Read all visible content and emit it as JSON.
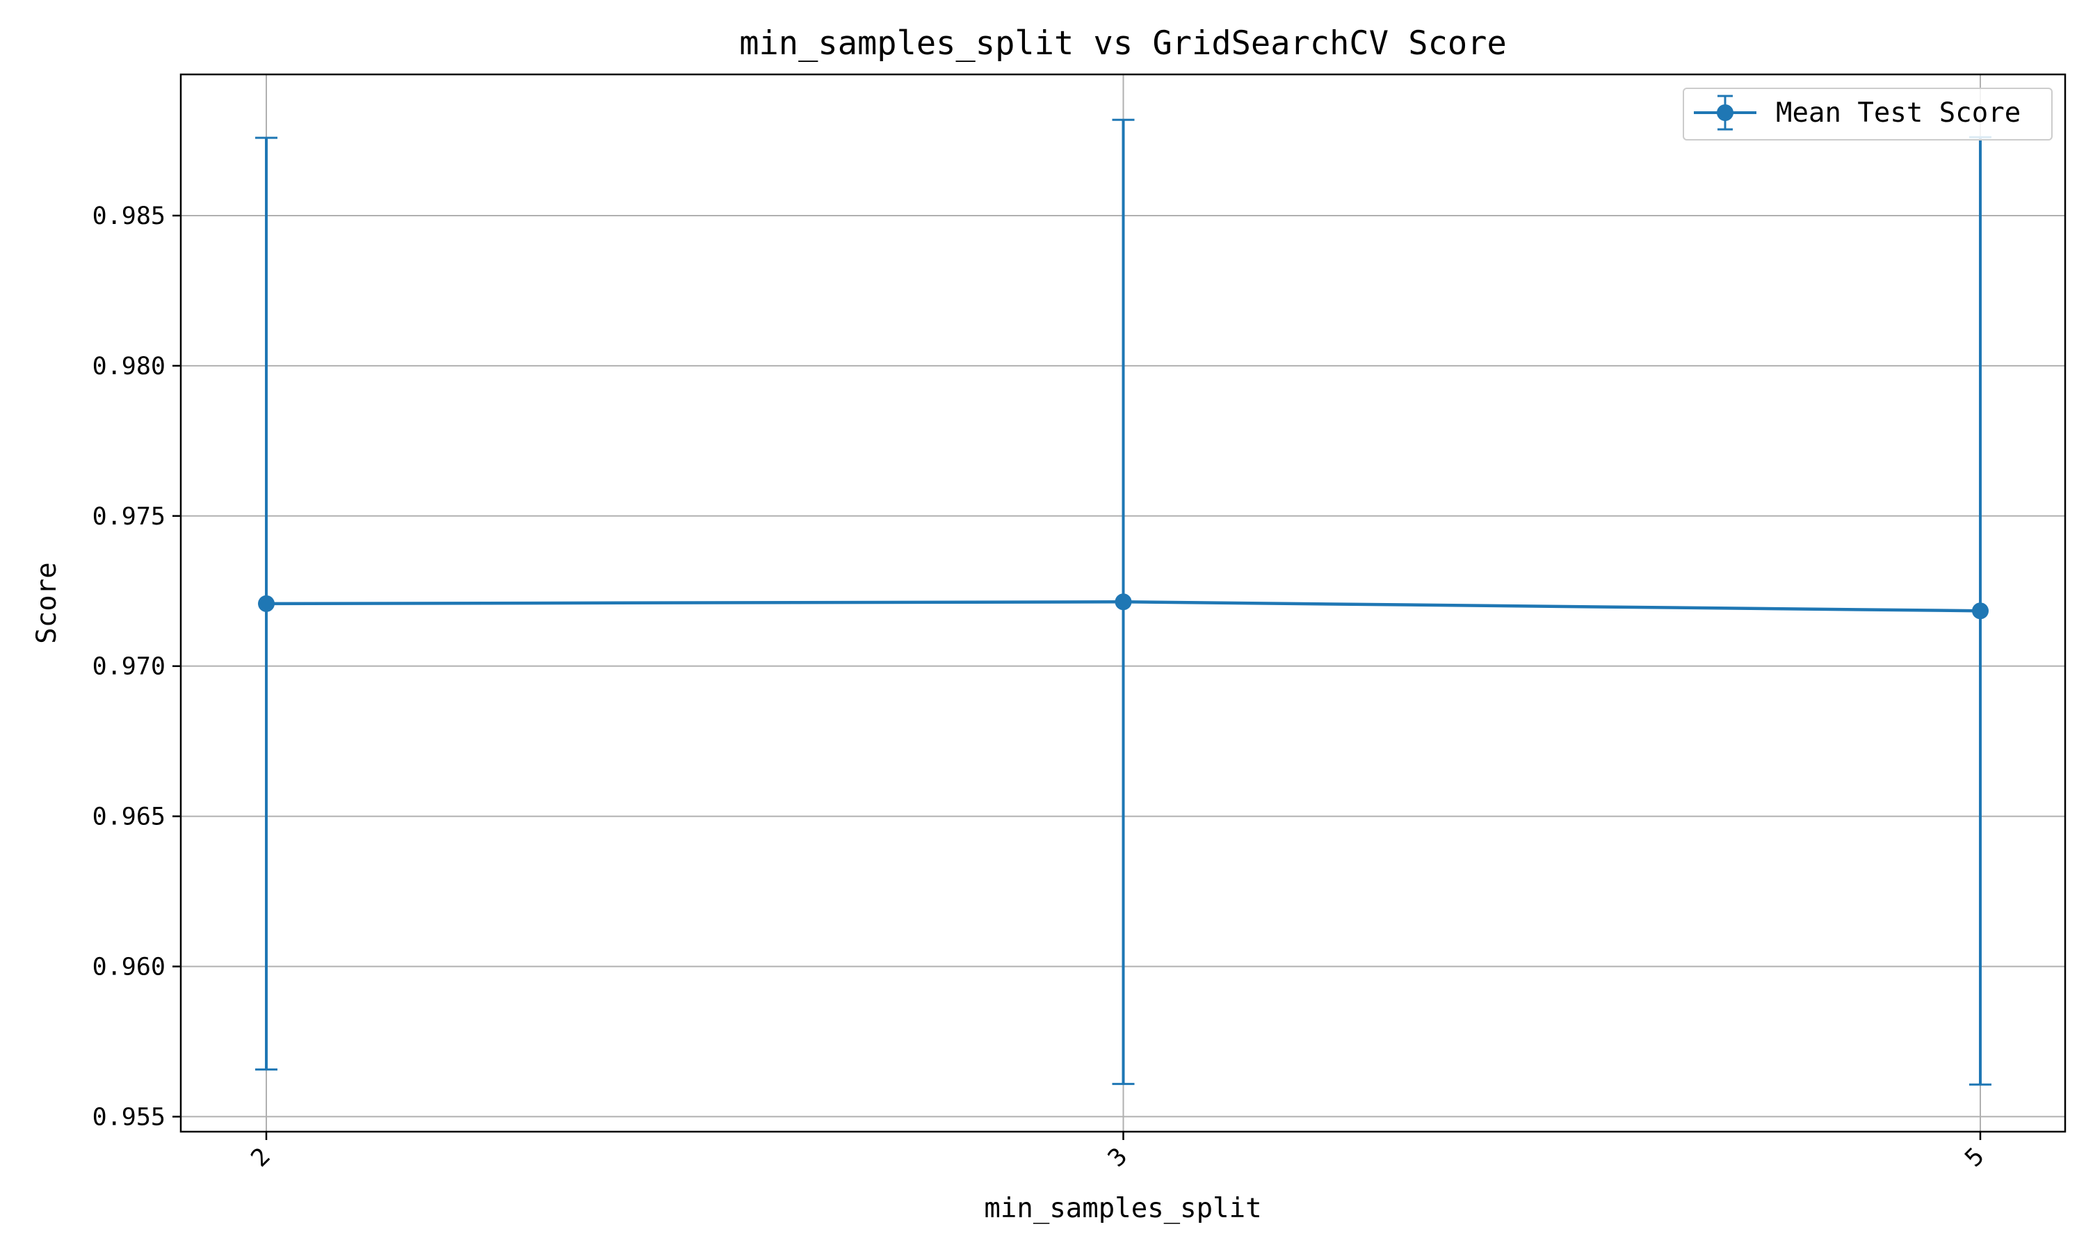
{
  "chart_data": {
    "type": "line",
    "title": "min_samples_split vs GridSearchCV Score",
    "xlabel": "min_samples_split",
    "ylabel": "Score",
    "categories": [
      "2",
      "3",
      "5"
    ],
    "series": [
      {
        "name": "Mean Test Score",
        "values": [
          0.97208,
          0.97214,
          0.97184
        ],
        "error": [
          0.01551,
          0.01605,
          0.01577
        ],
        "color": "#1f77b4"
      }
    ],
    "ylim": [
      0.9545,
      0.9897
    ],
    "yticks": [
      "0.955",
      "0.960",
      "0.965",
      "0.970",
      "0.975",
      "0.980",
      "0.985"
    ],
    "ytick_values": [
      0.955,
      0.96,
      0.965,
      0.97,
      0.975,
      0.98,
      0.985
    ],
    "xtick_rotation": "45 degrees",
    "grid": true,
    "legend_position": "upper-right"
  }
}
